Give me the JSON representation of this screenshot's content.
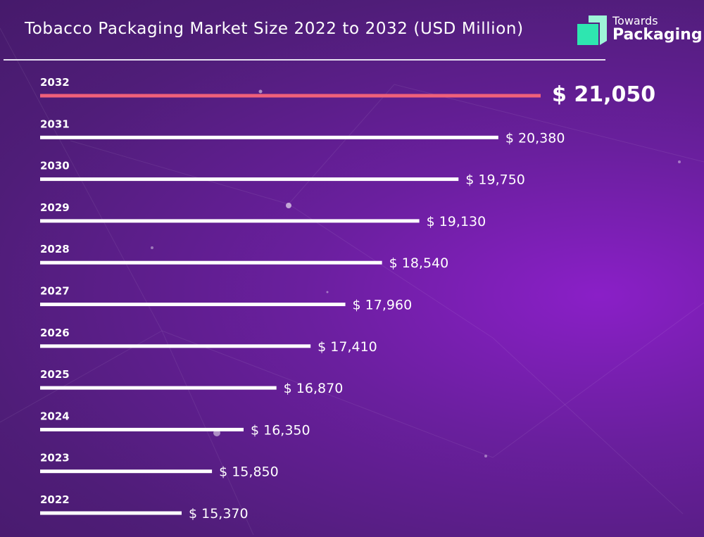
{
  "header": {
    "title": "Tobacco Packaging Market Size 2022 to 2032 (USD Million)"
  },
  "logo": {
    "name": "logo-mark",
    "line1": "Towards",
    "line2": "Packaging",
    "colors": {
      "front": "#2ee6b0",
      "back": "#9ef5d8"
    }
  },
  "colors": {
    "background": "#5a1f8a",
    "bar": "#ffffff",
    "highlight_bar": "#f0607a",
    "text": "#ffffff"
  },
  "chart_data": {
    "type": "bar",
    "orientation": "horizontal",
    "title": "Tobacco Packaging Market Size 2022 to 2032 (USD Million)",
    "categories": [
      "2032",
      "2031",
      "2030",
      "2029",
      "2028",
      "2027",
      "2026",
      "2025",
      "2024",
      "2023",
      "2022"
    ],
    "values": [
      21050,
      20380,
      19750,
      19130,
      18540,
      17960,
      17410,
      16870,
      16350,
      15850,
      15370
    ],
    "value_labels": [
      "$ 21,050",
      "$ 20,380",
      "$ 19,750",
      "$ 19,130",
      "$ 18,540",
      "$ 17,960",
      "$ 17,410",
      "$ 16,870",
      "$ 16,350",
      "$ 15,850",
      "$ 15,370"
    ],
    "highlight": "2032",
    "grid": false,
    "legend": "none"
  }
}
